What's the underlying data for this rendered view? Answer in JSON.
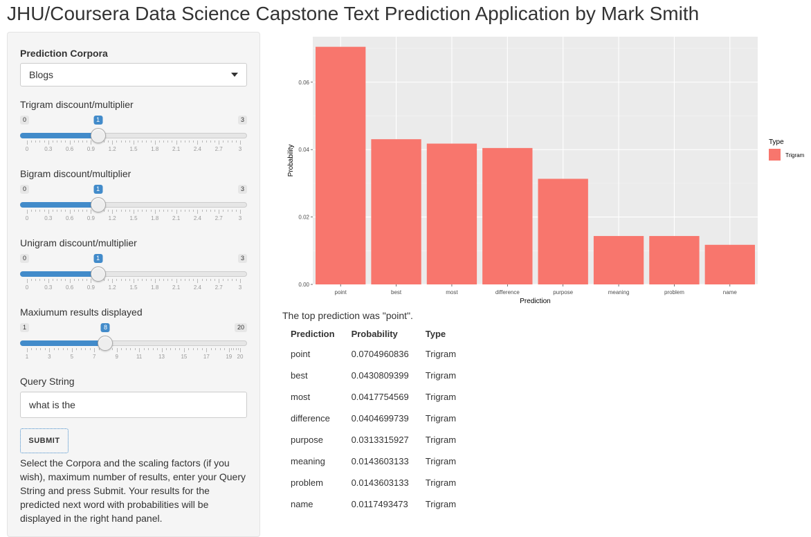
{
  "app": {
    "title": "JHU/Coursera Data Science Capstone Text Prediction Application by Mark Smith"
  },
  "sidebar": {
    "corpora_label": "Prediction Corpora",
    "corpora_selected": "Blogs",
    "sliders": [
      {
        "label": "Trigram discount/multiplier",
        "min": 0,
        "max": 3,
        "value": 1,
        "min_label": "0",
        "max_label": "3",
        "value_label": "1",
        "ticks": [
          "0",
          "0.3",
          "0.6",
          "0.9",
          "1.2",
          "1.5",
          "1.8",
          "2.1",
          "2.4",
          "2.7",
          "3"
        ]
      },
      {
        "label": "Bigram discount/multiplier",
        "min": 0,
        "max": 3,
        "value": 1,
        "min_label": "0",
        "max_label": "3",
        "value_label": "1",
        "ticks": [
          "0",
          "0.3",
          "0.6",
          "0.9",
          "1.2",
          "1.5",
          "1.8",
          "2.1",
          "2.4",
          "2.7",
          "3"
        ]
      },
      {
        "label": "Unigram discount/multiplier",
        "min": 0,
        "max": 3,
        "value": 1,
        "min_label": "0",
        "max_label": "3",
        "value_label": "1",
        "ticks": [
          "0",
          "0.3",
          "0.6",
          "0.9",
          "1.2",
          "1.5",
          "1.8",
          "2.1",
          "2.4",
          "2.7",
          "3"
        ]
      },
      {
        "label": "Maxiumum results displayed",
        "min": 1,
        "max": 20,
        "value": 8,
        "min_label": "1",
        "max_label": "20",
        "value_label": "8",
        "ticks": [
          "1",
          "3",
          "5",
          "7",
          "9",
          "11",
          "13",
          "15",
          "17",
          "19",
          "20"
        ]
      }
    ],
    "query_label": "Query String",
    "query_value": "what is the",
    "submit_label": "SUBMIT",
    "help_text": "Select the Corpora and the scaling factors (if you wish), maximum number of results, enter your Query String and press Submit. Your results for the predicted next word with probabilities will be displayed in the right hand panel."
  },
  "chart_data": {
    "type": "bar",
    "categories": [
      "point",
      "best",
      "most",
      "difference",
      "purpose",
      "meaning",
      "problem",
      "name"
    ],
    "series": [
      {
        "name": "Trigram",
        "values": [
          0.0704960836,
          0.0430809399,
          0.0417754569,
          0.0404699739,
          0.0313315927,
          0.0143603133,
          0.0143603133,
          0.0117493473
        ]
      }
    ],
    "xlabel": "Prediction",
    "ylabel": "Probability",
    "ylim": [
      0,
      0.0735
    ],
    "yticks": [
      "0.00",
      "0.02",
      "0.04",
      "0.06"
    ],
    "legend_title": "Type",
    "legend_position": "right",
    "grid": true,
    "bar_color": "#F8766D",
    "panel_color": "#EBEBEB"
  },
  "results": {
    "top_line": "The top prediction was \"point\".",
    "headers": [
      "Prediction",
      "Probability",
      "Type"
    ],
    "rows": [
      [
        "point",
        "0.0704960836",
        "Trigram"
      ],
      [
        "best",
        "0.0430809399",
        "Trigram"
      ],
      [
        "most",
        "0.0417754569",
        "Trigram"
      ],
      [
        "difference",
        "0.0404699739",
        "Trigram"
      ],
      [
        "purpose",
        "0.0313315927",
        "Trigram"
      ],
      [
        "meaning",
        "0.0143603133",
        "Trigram"
      ],
      [
        "problem",
        "0.0143603133",
        "Trigram"
      ],
      [
        "name",
        "0.0117493473",
        "Trigram"
      ]
    ]
  }
}
